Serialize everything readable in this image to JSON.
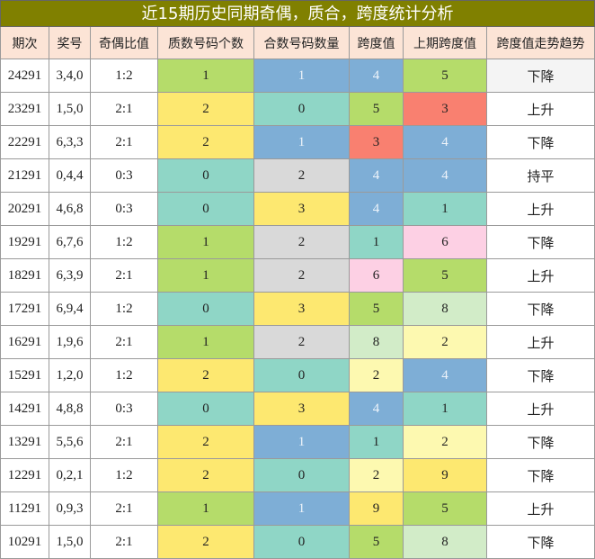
{
  "title": "近15期历史同期奇偶，质合，跨度统计分析",
  "table": {
    "header": [
      "期次",
      "奖号",
      "奇偶比值",
      "质数号码个数",
      "合数号码数量",
      "跨度值",
      "上期跨度值",
      "跨度值走势趋势"
    ],
    "rows": [
      [
        "24291",
        "3,4,0",
        "1:2",
        "1",
        "1",
        "4",
        "5",
        "下降"
      ],
      [
        "23291",
        "1,5,0",
        "2:1",
        "2",
        "0",
        "5",
        "3",
        "上升"
      ],
      [
        "22291",
        "6,3,3",
        "2:1",
        "2",
        "1",
        "3",
        "4",
        "下降"
      ],
      [
        "21291",
        "0,4,4",
        "0:3",
        "0",
        "2",
        "4",
        "4",
        "持平"
      ],
      [
        "20291",
        "4,6,8",
        "0:3",
        "0",
        "3",
        "4",
        "1",
        "上升"
      ],
      [
        "19291",
        "6,7,6",
        "1:2",
        "1",
        "2",
        "1",
        "6",
        "下降"
      ],
      [
        "18291",
        "6,3,9",
        "2:1",
        "1",
        "2",
        "6",
        "5",
        "上升"
      ],
      [
        "17291",
        "6,9,4",
        "1:2",
        "0",
        "3",
        "5",
        "8",
        "下降"
      ],
      [
        "16291",
        "1,9,6",
        "2:1",
        "1",
        "2",
        "8",
        "2",
        "上升"
      ],
      [
        "15291",
        "1,2,0",
        "1:2",
        "2",
        "0",
        "2",
        "4",
        "下降"
      ],
      [
        "14291",
        "4,8,8",
        "0:3",
        "0",
        "3",
        "4",
        "1",
        "上升"
      ],
      [
        "13291",
        "5,5,6",
        "2:1",
        "2",
        "1",
        "1",
        "2",
        "下降"
      ],
      [
        "12291",
        "0,2,1",
        "1:2",
        "2",
        "0",
        "2",
        "9",
        "下降"
      ],
      [
        "11291",
        "0,9,3",
        "2:1",
        "1",
        "1",
        "9",
        "5",
        "上升"
      ],
      [
        "10291",
        "1,5,0",
        "2:1",
        "2",
        "0",
        "5",
        "8",
        "下降"
      ]
    ],
    "cell_colors": [
      [
        "#b5dc6a",
        "#7eaed6",
        "#7eaed6",
        "#b5dc6a"
      ],
      [
        "#fde870",
        "#8fd6c6",
        "#b5dc6a",
        "#f98070"
      ],
      [
        "#fde870",
        "#7eaed6",
        "#f98070",
        "#7eaed6"
      ],
      [
        "#8fd6c6",
        "#d9d9d9",
        "#7eaed6",
        "#7eaed6"
      ],
      [
        "#8fd6c6",
        "#fde870",
        "#7eaed6",
        "#8fd6c6"
      ],
      [
        "#b5dc6a",
        "#d9d9d9",
        "#8fd6c6",
        "#fdd0e4"
      ],
      [
        "#b5dc6a",
        "#d9d9d9",
        "#fdd0e4",
        "#b5dc6a"
      ],
      [
        "#8fd6c6",
        "#fde870",
        "#b5dc6a",
        "#d2ecc8"
      ],
      [
        "#b5dc6a",
        "#d9d9d9",
        "#d2ecc8",
        "#fdf9b0"
      ],
      [
        "#fde870",
        "#8fd6c6",
        "#fdf9b0",
        "#7eaed6"
      ],
      [
        "#8fd6c6",
        "#fde870",
        "#7eaed6",
        "#8fd6c6"
      ],
      [
        "#fde870",
        "#7eaed6",
        "#8fd6c6",
        "#fdf9b0"
      ],
      [
        "#fde870",
        "#8fd6c6",
        "#fdf9b0",
        "#fde870"
      ],
      [
        "#b5dc6a",
        "#7eaed6",
        "#fde870",
        "#b5dc6a"
      ],
      [
        "#fde870",
        "#8fd6c6",
        "#b5dc6a",
        "#d2ecc8"
      ]
    ]
  }
}
